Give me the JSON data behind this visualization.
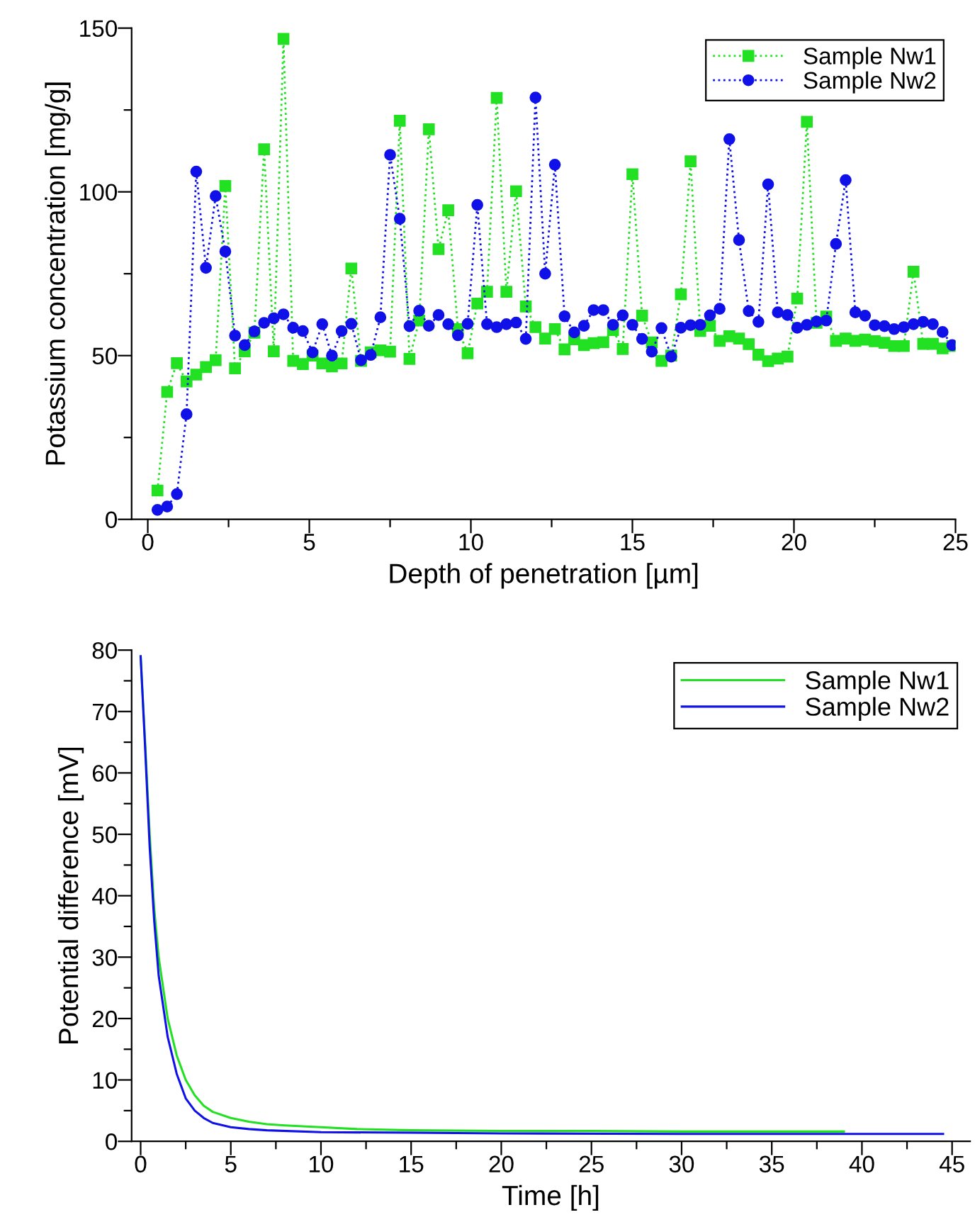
{
  "chart_data": [
    {
      "type": "line",
      "xlabel": "Depth of penetration [µm]",
      "ylabel": "Potassium concentration [mg/g]",
      "x": [
        0.3,
        0.6,
        0.9,
        1.2,
        1.5,
        1.8,
        2.1,
        2.4,
        2.7,
        3.0,
        3.3,
        3.6,
        3.9,
        4.2,
        4.5,
        4.8,
        5.1,
        5.4,
        5.7,
        6.0,
        6.3,
        6.6,
        6.9,
        7.2,
        7.5,
        7.8,
        8.1,
        8.4,
        8.7,
        9.0,
        9.3,
        9.6,
        9.9,
        10.2,
        10.5,
        10.8,
        11.1,
        11.4,
        11.7,
        12.0,
        12.3,
        12.6,
        12.9,
        13.2,
        13.5,
        13.8,
        14.1,
        14.4,
        14.7,
        15.0,
        15.3,
        15.6,
        15.9,
        16.2,
        16.5,
        16.8,
        17.1,
        17.4,
        17.7,
        18.0,
        18.3,
        18.6,
        18.9,
        19.2,
        19.5,
        19.8,
        20.1,
        20.4,
        20.7,
        21.0,
        21.3,
        21.6,
        21.9,
        22.2,
        22.5,
        22.8,
        23.1,
        23.4,
        23.7,
        24.0,
        24.3,
        24.6,
        24.9
      ],
      "series": [
        {
          "name": "Sample Nw1",
          "color": "#22e022",
          "marker": "square",
          "values": [
            8.8,
            38.9,
            47.7,
            42.1,
            44.2,
            46.5,
            48.6,
            101.8,
            46.1,
            51.3,
            57,
            113.0,
            51.3,
            146.7,
            48.4,
            47.4,
            50,
            47.6,
            46.7,
            47.6,
            76.6,
            48.4,
            51,
            51.6,
            51.2,
            121.7,
            49.0,
            60.7,
            119.1,
            82.5,
            94.4,
            58.1,
            50.7,
            65.9,
            69.5,
            128.7,
            69.5,
            100.2,
            65.0,
            58.7,
            55.2,
            58.1,
            51.9,
            55,
            53.2,
            53.8,
            54.1,
            57.8,
            52.0,
            105.4,
            62.2,
            54,
            48.4,
            50,
            68.7,
            109.3,
            57.5,
            59.1,
            54.5,
            55.9,
            55.2,
            53.5,
            50.3,
            48.3,
            49.1,
            49.7,
            67.4,
            121.4,
            60,
            61.9,
            54.5,
            55.2,
            54.5,
            54.9,
            54.4,
            53.9,
            52.9,
            52.9,
            75.6,
            53.6,
            53.6,
            52.2,
            52.9
          ]
        },
        {
          "name": "Sample Nw2",
          "color": "#1010e8",
          "marker": "circle",
          "values": [
            2.9,
            3.9,
            7.7,
            32.1,
            106.2,
            76.8,
            98.7,
            81.8,
            56.1,
            53.2,
            57.4,
            60.0,
            61.4,
            62.6,
            58.5,
            57.5,
            51.0,
            59.6,
            50.0,
            57.5,
            59.7,
            48.6,
            50.2,
            61.7,
            111.3,
            91.8,
            59.0,
            63.7,
            59.1,
            62.4,
            59.6,
            56.2,
            59.7,
            96.0,
            59.6,
            58.7,
            59.6,
            60.1,
            55.1,
            128.8,
            75.0,
            108.3,
            62.0,
            57.1,
            59.1,
            63.9,
            63.9,
            59.4,
            62.3,
            59.4,
            55.1,
            51.2,
            58.4,
            49.7,
            58.5,
            59.3,
            59.4,
            62.3,
            64.3,
            116.1,
            85.3,
            63.6,
            60.3,
            102.3,
            63.2,
            62.4,
            58.5,
            59.4,
            60.4,
            60.7,
            84.1,
            103.6,
            63.2,
            62.2,
            59.3,
            59.0,
            58.1,
            58.7,
            59.6,
            60.3,
            59.6,
            57.2,
            53.2
          ]
        }
      ],
      "line_style": "dotted",
      "legend": "top right",
      "grid": false,
      "xlim": [
        -0.5,
        25
      ],
      "ylim": [
        0,
        150
      ],
      "xticks": [
        0,
        {
          "value": 2.5,
          "label": null
        },
        5,
        {
          "value": 7.5,
          "label": null
        },
        10,
        {
          "value": 12.5,
          "label": null
        },
        15,
        {
          "value": 17.5,
          "label": null
        },
        20,
        {
          "value": 22.5,
          "label": null
        },
        25
      ],
      "yticks": [
        0,
        {
          "value": 25,
          "label": null
        },
        50,
        {
          "value": 75,
          "label": null
        },
        100,
        {
          "value": 125,
          "label": null
        },
        150
      ]
    },
    {
      "type": "line",
      "xlabel": "Time [h]",
      "ylabel": "Potential difference [mV]",
      "series": [
        {
          "name": "Sample Nw1",
          "color": "#22e022",
          "x": [
            0,
            0.25,
            0.5,
            0.75,
            1,
            1.5,
            2,
            2.5,
            3,
            3.5,
            4,
            5,
            6,
            7,
            8,
            10,
            12,
            15,
            20,
            25,
            30,
            35,
            39
          ],
          "values": [
            79,
            65,
            50,
            38,
            30,
            20,
            14,
            10,
            7.5,
            5.8,
            4.8,
            3.8,
            3.2,
            2.8,
            2.6,
            2.3,
            2.0,
            1.8,
            1.7,
            1.7,
            1.6,
            1.6,
            1.6
          ]
        },
        {
          "name": "Sample Nw2",
          "color": "#1010e8",
          "x": [
            0,
            0.25,
            0.5,
            0.75,
            1,
            1.5,
            2,
            2.5,
            3,
            3.5,
            4,
            5,
            6,
            7,
            10,
            15,
            20,
            30,
            40,
            44.5
          ],
          "values": [
            79,
            64,
            48,
            36,
            27,
            17,
            11,
            7,
            5,
            3.8,
            3,
            2.3,
            2,
            1.8,
            1.5,
            1.4,
            1.3,
            1.2,
            1.2,
            1.2
          ]
        }
      ],
      "line_style": "solid",
      "marker": "none",
      "legend": "top right",
      "grid": false,
      "xlim": [
        -0.5,
        46
      ],
      "ylim": [
        0,
        80
      ],
      "xticks": [
        0,
        {
          "value": 2.5,
          "label": null
        },
        5,
        {
          "value": 7.5,
          "label": null
        },
        10,
        {
          "value": 12.5,
          "label": null
        },
        15,
        {
          "value": 17.5,
          "label": null
        },
        20,
        {
          "value": 22.5,
          "label": null
        },
        25,
        {
          "value": 27.5,
          "label": null
        },
        30,
        {
          "value": 32.5,
          "label": null
        },
        35,
        {
          "value": 37.5,
          "label": null
        },
        40,
        {
          "value": 42.5,
          "label": null
        },
        45
      ],
      "yticks": [
        0,
        {
          "value": 5,
          "label": null
        },
        10,
        {
          "value": 15,
          "label": null
        },
        20,
        {
          "value": 25,
          "label": null
        },
        30,
        {
          "value": 35,
          "label": null
        },
        40,
        {
          "value": 45,
          "label": null
        },
        50,
        {
          "value": 55,
          "label": null
        },
        60,
        {
          "value": 65,
          "label": null
        },
        70,
        {
          "value": 75,
          "label": null
        },
        80
      ]
    }
  ]
}
